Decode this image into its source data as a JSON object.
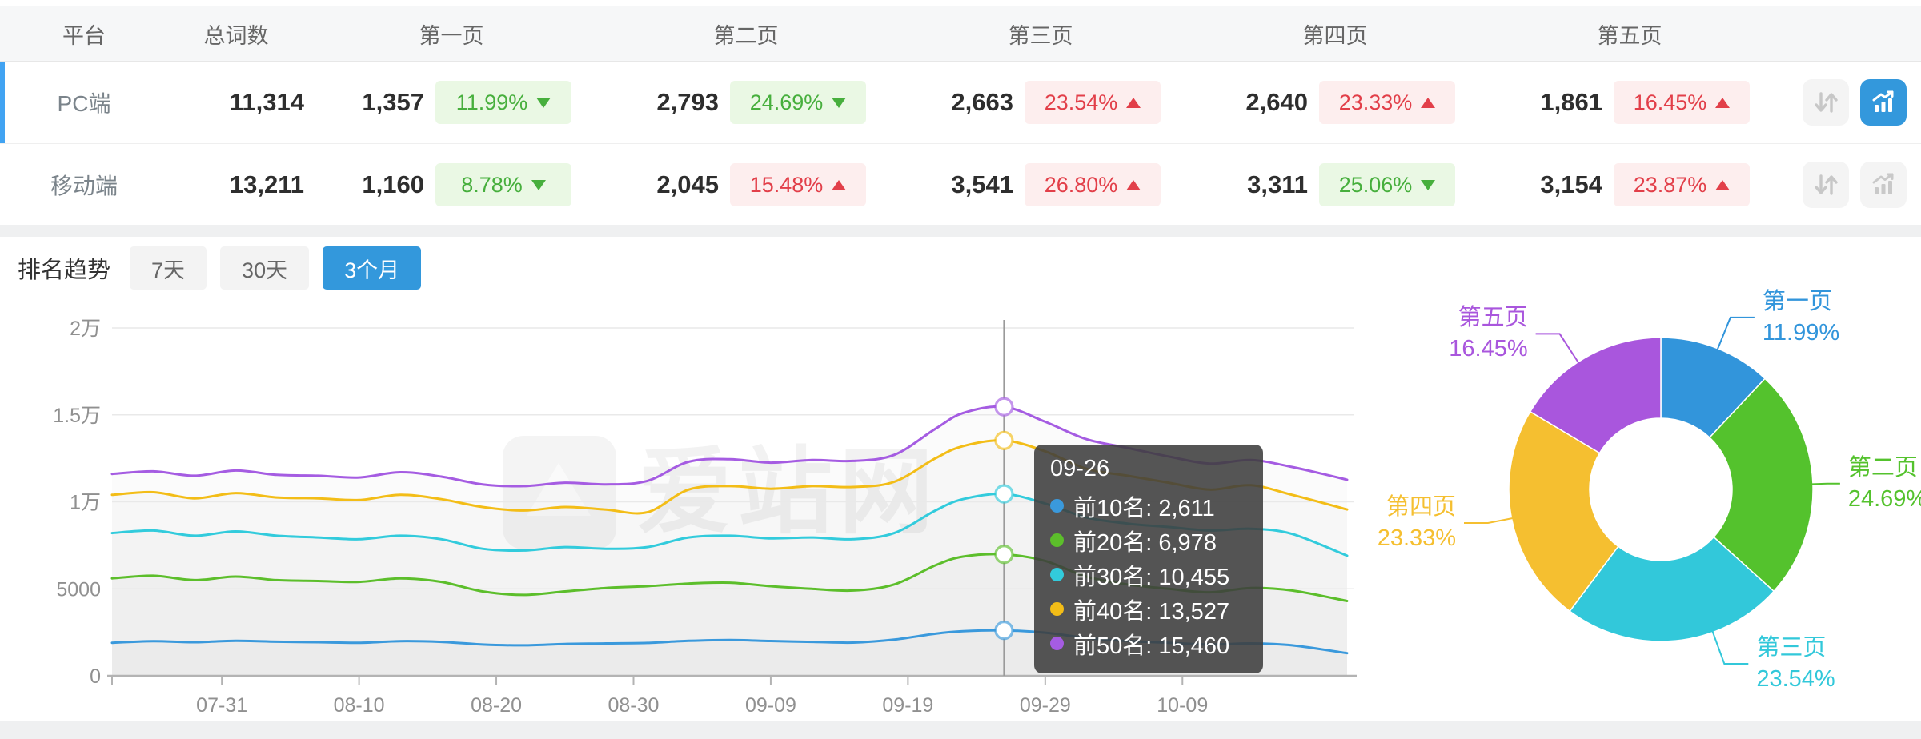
{
  "table": {
    "headers": {
      "platform": "平台",
      "total": "总词数",
      "pages": [
        "第一页",
        "第二页",
        "第三页",
        "第四页",
        "第五页"
      ]
    },
    "rows": [
      {
        "platform": "PC端",
        "total": "11,314",
        "selected": true,
        "pages": [
          {
            "count": "1,357",
            "change": "11.99%",
            "direction": "down",
            "tone": "positive"
          },
          {
            "count": "2,793",
            "change": "24.69%",
            "direction": "down",
            "tone": "positive"
          },
          {
            "count": "2,663",
            "change": "23.54%",
            "direction": "up",
            "tone": "negative"
          },
          {
            "count": "2,640",
            "change": "23.33%",
            "direction": "up",
            "tone": "negative"
          },
          {
            "count": "1,861",
            "change": "16.45%",
            "direction": "up",
            "tone": "negative"
          }
        ]
      },
      {
        "platform": "移动端",
        "total": "13,211",
        "selected": false,
        "pages": [
          {
            "count": "1,160",
            "change": "8.78%",
            "direction": "down",
            "tone": "positive"
          },
          {
            "count": "2,045",
            "change": "15.48%",
            "direction": "up",
            "tone": "negative"
          },
          {
            "count": "3,541",
            "change": "26.80%",
            "direction": "up",
            "tone": "negative"
          },
          {
            "count": "3,311",
            "change": "25.06%",
            "direction": "down",
            "tone": "positive"
          },
          {
            "count": "3,154",
            "change": "23.87%",
            "direction": "up",
            "tone": "negative"
          }
        ]
      }
    ]
  },
  "trend": {
    "title": "排名趋势",
    "tabs": [
      {
        "label": "7天",
        "active": false
      },
      {
        "label": "30天",
        "active": false
      },
      {
        "label": "3个月",
        "active": true
      }
    ]
  },
  "watermark": "爱站网",
  "tooltip": {
    "date": "09-26",
    "rows": [
      {
        "label": "前10名",
        "value": "2,611",
        "color": "#3a99dc"
      },
      {
        "label": "前20名",
        "value": "6,978",
        "color": "#5cbe2b"
      },
      {
        "label": "前30名",
        "value": "10,455",
        "color": "#32cbdc"
      },
      {
        "label": "前40名",
        "value": "13,527",
        "color": "#f3bd17"
      },
      {
        "label": "前50名",
        "value": "15,460",
        "color": "#a55ce2"
      }
    ]
  },
  "chart_data": [
    {
      "type": "line",
      "title": "排名趋势（3个月）",
      "ylim": [
        0,
        20000
      ],
      "yticks": [
        {
          "value": 0,
          "label": "0"
        },
        {
          "value": 5000,
          "label": "5000"
        },
        {
          "value": 10000,
          "label": "1万"
        },
        {
          "value": 15000,
          "label": "1.5万"
        },
        {
          "value": 20000,
          "label": "2万"
        }
      ],
      "xticks": [
        {
          "day": 8,
          "label": "07-31"
        },
        {
          "day": 18,
          "label": "08-10"
        },
        {
          "day": 28,
          "label": "08-20"
        },
        {
          "day": 38,
          "label": "08-30"
        },
        {
          "day": 48,
          "label": "09-09"
        },
        {
          "day": 58,
          "label": "09-19"
        },
        {
          "day": 68,
          "label": "09-29"
        },
        {
          "day": 78,
          "label": "10-09"
        }
      ],
      "day_span": [
        0,
        90
      ],
      "highlight_day": 65,
      "highlight_date": "09-26",
      "grid": true,
      "series": [
        {
          "name": "前10名",
          "color": "#3a99dc",
          "points": [
            [
              0,
              1900
            ],
            [
              3,
              1990
            ],
            [
              6,
              1930
            ],
            [
              9,
              2010
            ],
            [
              12,
              1960
            ],
            [
              15,
              1930
            ],
            [
              18,
              1900
            ],
            [
              21,
              1990
            ],
            [
              24,
              1950
            ],
            [
              27,
              1800
            ],
            [
              30,
              1750
            ],
            [
              33,
              1830
            ],
            [
              36,
              1860
            ],
            [
              39,
              1890
            ],
            [
              42,
              2010
            ],
            [
              45,
              2060
            ],
            [
              48,
              2000
            ],
            [
              51,
              1950
            ],
            [
              54,
              1910
            ],
            [
              57,
              2080
            ],
            [
              60,
              2420
            ],
            [
              62,
              2560
            ],
            [
              65,
              2611
            ],
            [
              68,
              2480
            ],
            [
              71,
              2180
            ],
            [
              74,
              2000
            ],
            [
              77,
              1900
            ],
            [
              80,
              1800
            ],
            [
              83,
              1860
            ],
            [
              86,
              1750
            ],
            [
              90,
              1300
            ]
          ]
        },
        {
          "name": "前20名",
          "color": "#5cbe2b",
          "points": [
            [
              0,
              5600
            ],
            [
              3,
              5750
            ],
            [
              6,
              5500
            ],
            [
              9,
              5700
            ],
            [
              12,
              5500
            ],
            [
              15,
              5450
            ],
            [
              18,
              5400
            ],
            [
              21,
              5600
            ],
            [
              24,
              5400
            ],
            [
              27,
              4850
            ],
            [
              30,
              4650
            ],
            [
              33,
              4850
            ],
            [
              36,
              5050
            ],
            [
              39,
              5150
            ],
            [
              42,
              5300
            ],
            [
              45,
              5350
            ],
            [
              48,
              5150
            ],
            [
              51,
              5000
            ],
            [
              54,
              4900
            ],
            [
              57,
              5250
            ],
            [
              60,
              6350
            ],
            [
              62,
              6850
            ],
            [
              65,
              6978
            ],
            [
              68,
              6600
            ],
            [
              71,
              5700
            ],
            [
              74,
              5250
            ],
            [
              77,
              5000
            ],
            [
              80,
              4800
            ],
            [
              83,
              5050
            ],
            [
              86,
              4900
            ],
            [
              90,
              4300
            ]
          ]
        },
        {
          "name": "前30名",
          "color": "#32cbdc",
          "points": [
            [
              0,
              8200
            ],
            [
              3,
              8350
            ],
            [
              6,
              8050
            ],
            [
              9,
              8300
            ],
            [
              12,
              8050
            ],
            [
              15,
              7950
            ],
            [
              18,
              7850
            ],
            [
              21,
              8050
            ],
            [
              24,
              7850
            ],
            [
              27,
              7300
            ],
            [
              30,
              7200
            ],
            [
              33,
              7400
            ],
            [
              36,
              7300
            ],
            [
              39,
              7400
            ],
            [
              42,
              7950
            ],
            [
              45,
              8050
            ],
            [
              48,
              7900
            ],
            [
              51,
              7950
            ],
            [
              54,
              7850
            ],
            [
              57,
              8200
            ],
            [
              60,
              9500
            ],
            [
              62,
              10150
            ],
            [
              65,
              10455
            ],
            [
              68,
              9900
            ],
            [
              71,
              9100
            ],
            [
              74,
              8750
            ],
            [
              77,
              8550
            ],
            [
              80,
              8350
            ],
            [
              83,
              8450
            ],
            [
              86,
              8150
            ],
            [
              90,
              6900
            ]
          ]
        },
        {
          "name": "前40名",
          "color": "#f3bd17",
          "points": [
            [
              0,
              10400
            ],
            [
              3,
              10550
            ],
            [
              6,
              10200
            ],
            [
              9,
              10500
            ],
            [
              12,
              10250
            ],
            [
              15,
              10200
            ],
            [
              18,
              10100
            ],
            [
              21,
              10400
            ],
            [
              24,
              10150
            ],
            [
              27,
              9700
            ],
            [
              30,
              9500
            ],
            [
              33,
              9700
            ],
            [
              36,
              9550
            ],
            [
              39,
              9400
            ],
            [
              42,
              10700
            ],
            [
              45,
              10900
            ],
            [
              48,
              10750
            ],
            [
              51,
              10900
            ],
            [
              54,
              10850
            ],
            [
              57,
              11150
            ],
            [
              60,
              12500
            ],
            [
              62,
              13200
            ],
            [
              65,
              13527
            ],
            [
              68,
              12900
            ],
            [
              71,
              11900
            ],
            [
              74,
              11500
            ],
            [
              77,
              11100
            ],
            [
              80,
              10700
            ],
            [
              83,
              10950
            ],
            [
              86,
              10400
            ],
            [
              90,
              9560
            ]
          ]
        },
        {
          "name": "前50名",
          "color": "#a55ce2",
          "points": [
            [
              0,
              11600
            ],
            [
              3,
              11750
            ],
            [
              6,
              11500
            ],
            [
              9,
              11800
            ],
            [
              12,
              11550
            ],
            [
              15,
              11500
            ],
            [
              18,
              11400
            ],
            [
              21,
              11700
            ],
            [
              24,
              11450
            ],
            [
              27,
              11000
            ],
            [
              30,
              10900
            ],
            [
              33,
              11100
            ],
            [
              36,
              11000
            ],
            [
              39,
              11200
            ],
            [
              42,
              12300
            ],
            [
              45,
              12450
            ],
            [
              48,
              12250
            ],
            [
              51,
              12400
            ],
            [
              54,
              12350
            ],
            [
              57,
              12700
            ],
            [
              60,
              14200
            ],
            [
              62,
              15100
            ],
            [
              65,
              15460
            ],
            [
              68,
              14600
            ],
            [
              71,
              13600
            ],
            [
              74,
              13100
            ],
            [
              77,
              12600
            ],
            [
              80,
              12200
            ],
            [
              83,
              12400
            ],
            [
              86,
              12000
            ],
            [
              90,
              11270
            ]
          ]
        }
      ]
    },
    {
      "type": "pie",
      "hole": 0.47,
      "slices": [
        {
          "label": "第一页",
          "value": 11.99,
          "display": "11.99%",
          "color": "#3295db"
        },
        {
          "label": "第二页",
          "value": 24.69,
          "display": "24.69%",
          "color": "#54c22d"
        },
        {
          "label": "第三页",
          "value": 23.54,
          "display": "23.54%",
          "color": "#32c8da"
        },
        {
          "label": "第四页",
          "value": 23.33,
          "display": "23.33%",
          "color": "#f5bf30"
        },
        {
          "label": "第五页",
          "value": 16.45,
          "display": "16.45%",
          "color": "#a956dd"
        }
      ]
    }
  ],
  "colors": {
    "accent_blue": "#3398dc",
    "row_indicator": "#41a3f2",
    "badge_green": "#47af3d",
    "badge_red": "#e23f49"
  }
}
